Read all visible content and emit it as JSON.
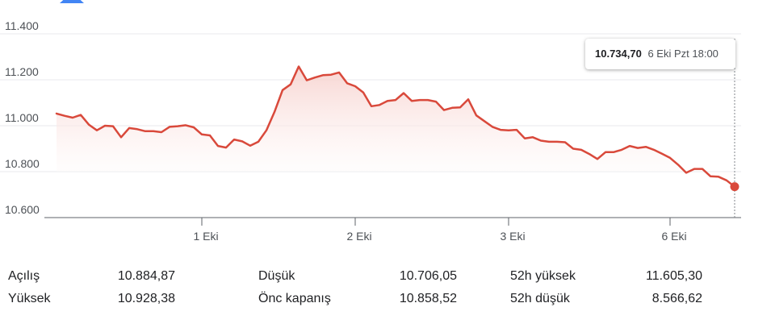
{
  "colors": {
    "line": "#d9493b",
    "fill_top": "#f7d1cd",
    "grid": "#e8eaed",
    "axis": "#5f6368",
    "logo": "#4285f4"
  },
  "tooltip": {
    "value": "10.734,70",
    "time": "6 Eki Pzt 18:00"
  },
  "stats": {
    "rows": [
      [
        {
          "label": "Açılış",
          "value": "10.884,87"
        },
        {
          "label": "Düşük",
          "value": "10.706,05"
        },
        {
          "label": "52h yüksek",
          "value": "11.605,30"
        }
      ],
      [
        {
          "label": "Yüksek",
          "value": "10.928,38"
        },
        {
          "label": "Önc kapanış",
          "value": "10.858,52"
        },
        {
          "label": "52h düşük",
          "value": "8.566,62"
        }
      ]
    ]
  },
  "chart_data": {
    "type": "area",
    "ylim": [
      10600,
      11400
    ],
    "y_ticks": [
      {
        "value": 11400,
        "label": "11.400"
      },
      {
        "value": 11200,
        "label": "11.200"
      },
      {
        "value": 11000,
        "label": "11.000"
      },
      {
        "value": 10800,
        "label": "10.800"
      },
      {
        "value": 10600,
        "label": "10.600"
      }
    ],
    "x_ticks": [
      {
        "index": 18,
        "label": "1 Eki"
      },
      {
        "index": 37,
        "label": "2 Eki"
      },
      {
        "index": 56,
        "label": "3 Eki"
      },
      {
        "index": 76,
        "label": "6 Eki"
      }
    ],
    "grid": true,
    "values": [
      11053,
      11043,
      11035,
      11047,
      11005,
      10980,
      11000,
      10998,
      10950,
      10990,
      10985,
      10976,
      10976,
      10972,
      10995,
      10998,
      11002,
      10993,
      10962,
      10958,
      10912,
      10905,
      10940,
      10932,
      10913,
      10930,
      10980,
      11060,
      11155,
      11180,
      11258,
      11198,
      11210,
      11220,
      11222,
      11232,
      11185,
      11172,
      11145,
      11085,
      11090,
      11108,
      11112,
      11142,
      11108,
      11112,
      11112,
      11105,
      11068,
      11078,
      11080,
      11115,
      11045,
      11020,
      10995,
      10982,
      10980,
      10982,
      10945,
      10950,
      10935,
      10930,
      10930,
      10928,
      10900,
      10895,
      10877,
      10855,
      10885,
      10885,
      10895,
      10912,
      10903,
      10908,
      10895,
      10878,
      10860,
      10830,
      10795,
      10812,
      10812,
      10780,
      10778,
      10762,
      10734.7
    ],
    "last_point_marker": true
  }
}
